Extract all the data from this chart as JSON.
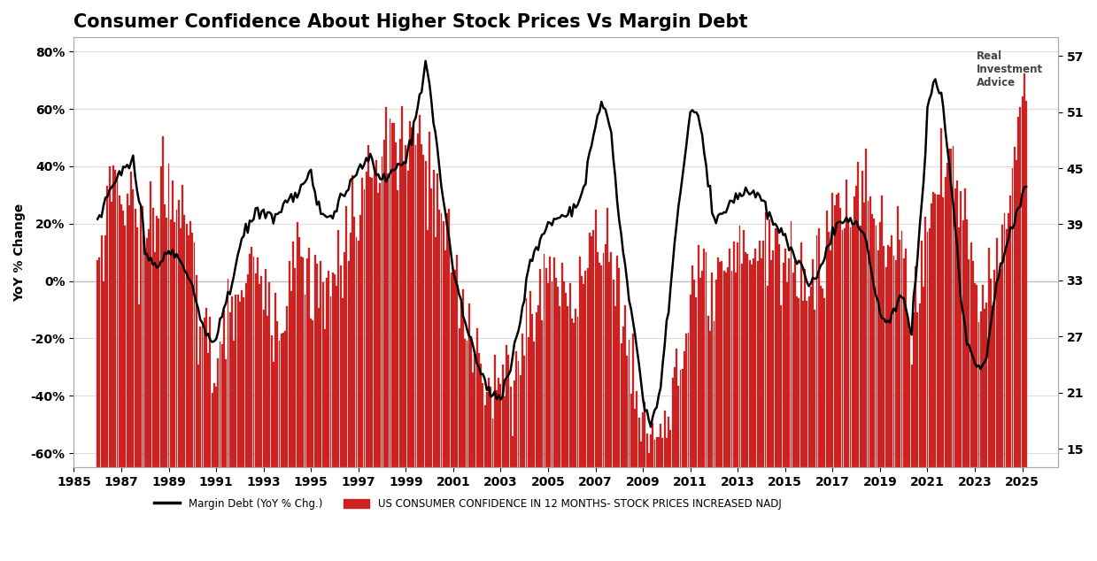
{
  "title": "Consumer Confidence About Higher Stock Prices Vs Margin Debt",
  "ylabel_left": "YoY % Change",
  "legend_line": "Margin Debt (YoY % Chg.)",
  "legend_bar": "US CONSUMER CONFIDENCE IN 12 MONTHS- STOCK PRICES INCREASED NADJ",
  "background_color": "#ffffff",
  "bar_color": "#cc2222",
  "line_color": "#000000",
  "yticks_left": [
    -0.6,
    -0.4,
    -0.2,
    0.0,
    0.2,
    0.4,
    0.6,
    0.8
  ],
  "ytick_labels_left": [
    "-60%",
    "-40%",
    "-20%",
    "0%",
    "20%",
    "40%",
    "60%",
    "80%"
  ],
  "yticks_right": [
    15,
    21,
    27,
    33,
    39,
    45,
    51,
    57
  ],
  "xlim_start": 1985.0,
  "xlim_end": 2026.5,
  "ylim_left": [
    -0.65,
    0.85
  ],
  "ylim_right": [
    13.0,
    59.0
  ],
  "xtick_years": [
    1985,
    1987,
    1989,
    1991,
    1993,
    1995,
    1997,
    1999,
    2001,
    2003,
    2005,
    2007,
    2009,
    2011,
    2013,
    2015,
    2017,
    2019,
    2021,
    2023,
    2025
  ],
  "grid_color": "#dddddd",
  "title_fontsize": 15,
  "axis_fontsize": 10,
  "tick_fontsize": 10
}
